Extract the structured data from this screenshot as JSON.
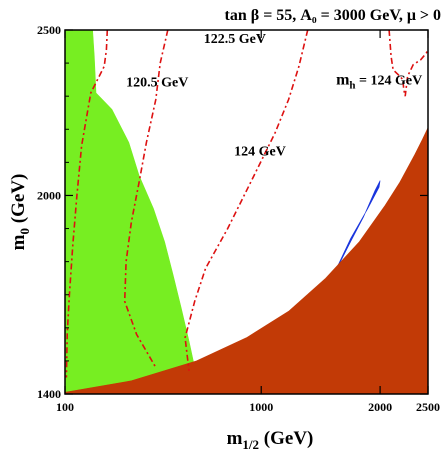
{
  "chart_data": {
    "type": "area",
    "title": "tan β = 55, A₀ = 3000 GeV,  μ > 0",
    "xlabel": "m1/2 (GeV)",
    "ylabel": "m0 (GeV)",
    "xlim": [
      100,
      2500
    ],
    "ylim": [
      1400,
      2500
    ],
    "x_ticks": [
      {
        "value": 100,
        "label": "100"
      },
      {
        "value": 1000,
        "label": "1000"
      },
      {
        "value": 2000,
        "label": "2000"
      },
      {
        "value": 2500,
        "label": "2500"
      }
    ],
    "y_ticks": [
      {
        "value": 1400,
        "label": "1400"
      },
      {
        "value": 2000,
        "label": "2000"
      },
      {
        "value": 2500,
        "label": "2500"
      }
    ],
    "regions": [
      {
        "id": "green-region",
        "color": "#77ee22",
        "points": [
          [
            100,
            2500
          ],
          [
            170,
            2500
          ],
          [
            175,
            2420
          ],
          [
            180,
            2310
          ],
          [
            230,
            2260
          ],
          [
            290,
            2160
          ],
          [
            330,
            2060
          ],
          [
            390,
            1960
          ],
          [
            440,
            1860
          ],
          [
            480,
            1760
          ],
          [
            520,
            1660
          ],
          [
            560,
            1560
          ],
          [
            590,
            1480
          ],
          [
            590,
            1430
          ],
          [
            100,
            1400
          ]
        ]
      },
      {
        "id": "blue-region",
        "color": "#1a35dd",
        "points": [
          [
            1310,
            1615
          ],
          [
            1540,
            1740
          ],
          [
            1720,
            1860
          ],
          [
            1840,
            1935
          ],
          [
            1950,
            2015
          ],
          [
            2000,
            2045
          ],
          [
            1990,
            2025
          ],
          [
            1880,
            1960
          ],
          [
            1720,
            1870
          ],
          [
            1580,
            1770
          ],
          [
            1400,
            1665
          ]
        ]
      },
      {
        "id": "brown-region",
        "color": "#c23a06",
        "points": [
          [
            100,
            1400
          ],
          [
            100,
            1405
          ],
          [
            300,
            1440
          ],
          [
            600,
            1500
          ],
          [
            900,
            1570
          ],
          [
            1200,
            1650
          ],
          [
            1500,
            1750
          ],
          [
            1800,
            1860
          ],
          [
            2050,
            1970
          ],
          [
            2200,
            2040
          ],
          [
            2350,
            2120
          ],
          [
            2440,
            2170
          ],
          [
            2500,
            2205
          ],
          [
            2500,
            1400
          ]
        ]
      }
    ],
    "contours": [
      {
        "label": "120.5 GeV",
        "label_pos": [
          280,
          2330
        ],
        "points": [
          [
            215,
            2500
          ],
          [
            212,
            2440
          ],
          [
            205,
            2390
          ],
          [
            165,
            2310
          ],
          [
            140,
            2150
          ],
          [
            128,
            2000
          ],
          [
            118,
            1850
          ],
          [
            110,
            1700
          ],
          [
            105,
            1580
          ],
          [
            103,
            1450
          ]
        ]
      },
      {
        "label": "122.5 GeV",
        "label_pos": [
          640,
          2460
        ],
        "points": [
          [
            455,
            2500
          ],
          [
            420,
            2400
          ],
          [
            400,
            2290
          ],
          [
            360,
            2160
          ],
          [
            330,
            2040
          ],
          [
            300,
            1920
          ],
          [
            280,
            1800
          ],
          [
            275,
            1680
          ],
          [
            320,
            1580
          ],
          [
            400,
            1480
          ]
        ]
      },
      {
        "label": "124 GeV",
        "label_pos": [
          820,
          2120
        ],
        "points": [
          [
            1350,
            2500
          ],
          [
            1280,
            2390
          ],
          [
            1200,
            2290
          ],
          [
            1100,
            2190
          ],
          [
            950,
            2060
          ],
          [
            780,
            1900
          ],
          [
            650,
            1780
          ],
          [
            590,
            1680
          ],
          [
            540,
            1570
          ],
          [
            560,
            1470
          ]
        ]
      },
      {
        "label": "m_h = 124 GeV",
        "label_pos": [
          1590,
          2335
        ],
        "points": [
          [
            2090,
            2500
          ],
          [
            2110,
            2420
          ],
          [
            2130,
            2380
          ],
          [
            2200,
            2360
          ],
          [
            2230,
            2350
          ],
          [
            2240,
            2320
          ],
          [
            2255,
            2300
          ],
          [
            2280,
            2360
          ],
          [
            2340,
            2395
          ],
          [
            2420,
            2410
          ],
          [
            2480,
            2430
          ],
          [
            2500,
            2440
          ]
        ]
      }
    ],
    "grid": false,
    "legend": "none"
  }
}
